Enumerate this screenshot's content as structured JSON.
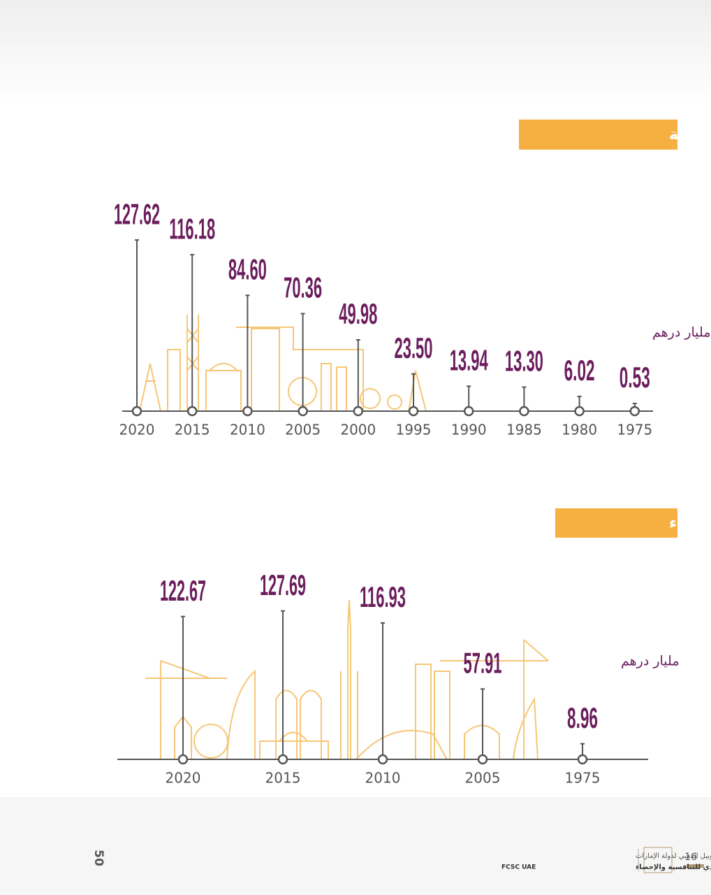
{
  "chart_data": [
    {
      "type": "lollipop",
      "title": "الصناعات التحويلية",
      "unit": "مليار درهم",
      "categories": [
        "2020",
        "2015",
        "2010",
        "2005",
        "2000",
        "1995",
        "1990",
        "1985",
        "1980",
        "1975"
      ],
      "values": [
        127.62,
        116.18,
        84.6,
        70.36,
        49.98,
        23.5,
        13.94,
        13.3,
        6.02,
        0.53
      ],
      "value_labels": [
        "127.62",
        "116.18",
        "84.60",
        "70.36",
        "49.98",
        "23.50",
        "13.94",
        "13.30",
        "6.02",
        "0.53"
      ],
      "color": "#6b1d5c"
    },
    {
      "type": "lollipop",
      "title": "التشييد والبناء",
      "unit": "مليار درهم",
      "categories": [
        "2020",
        "2015",
        "2010",
        "2005",
        "1975"
      ],
      "values": [
        122.67,
        127.69,
        116.93,
        57.91,
        8.96
      ],
      "value_labels": [
        "122.67",
        "127.69",
        "116.93",
        "57.91",
        "8.96"
      ],
      "color": "#6b1d5c"
    }
  ],
  "footer": {
    "page": "16",
    "jubilee": "50",
    "edition": "إصدار خاص - اليوبيل الذهبي لدولة الإمارات",
    "center": "المركز الاتحادي للتنافسية والإحصاء",
    "abbr": "FCSC UAE"
  }
}
